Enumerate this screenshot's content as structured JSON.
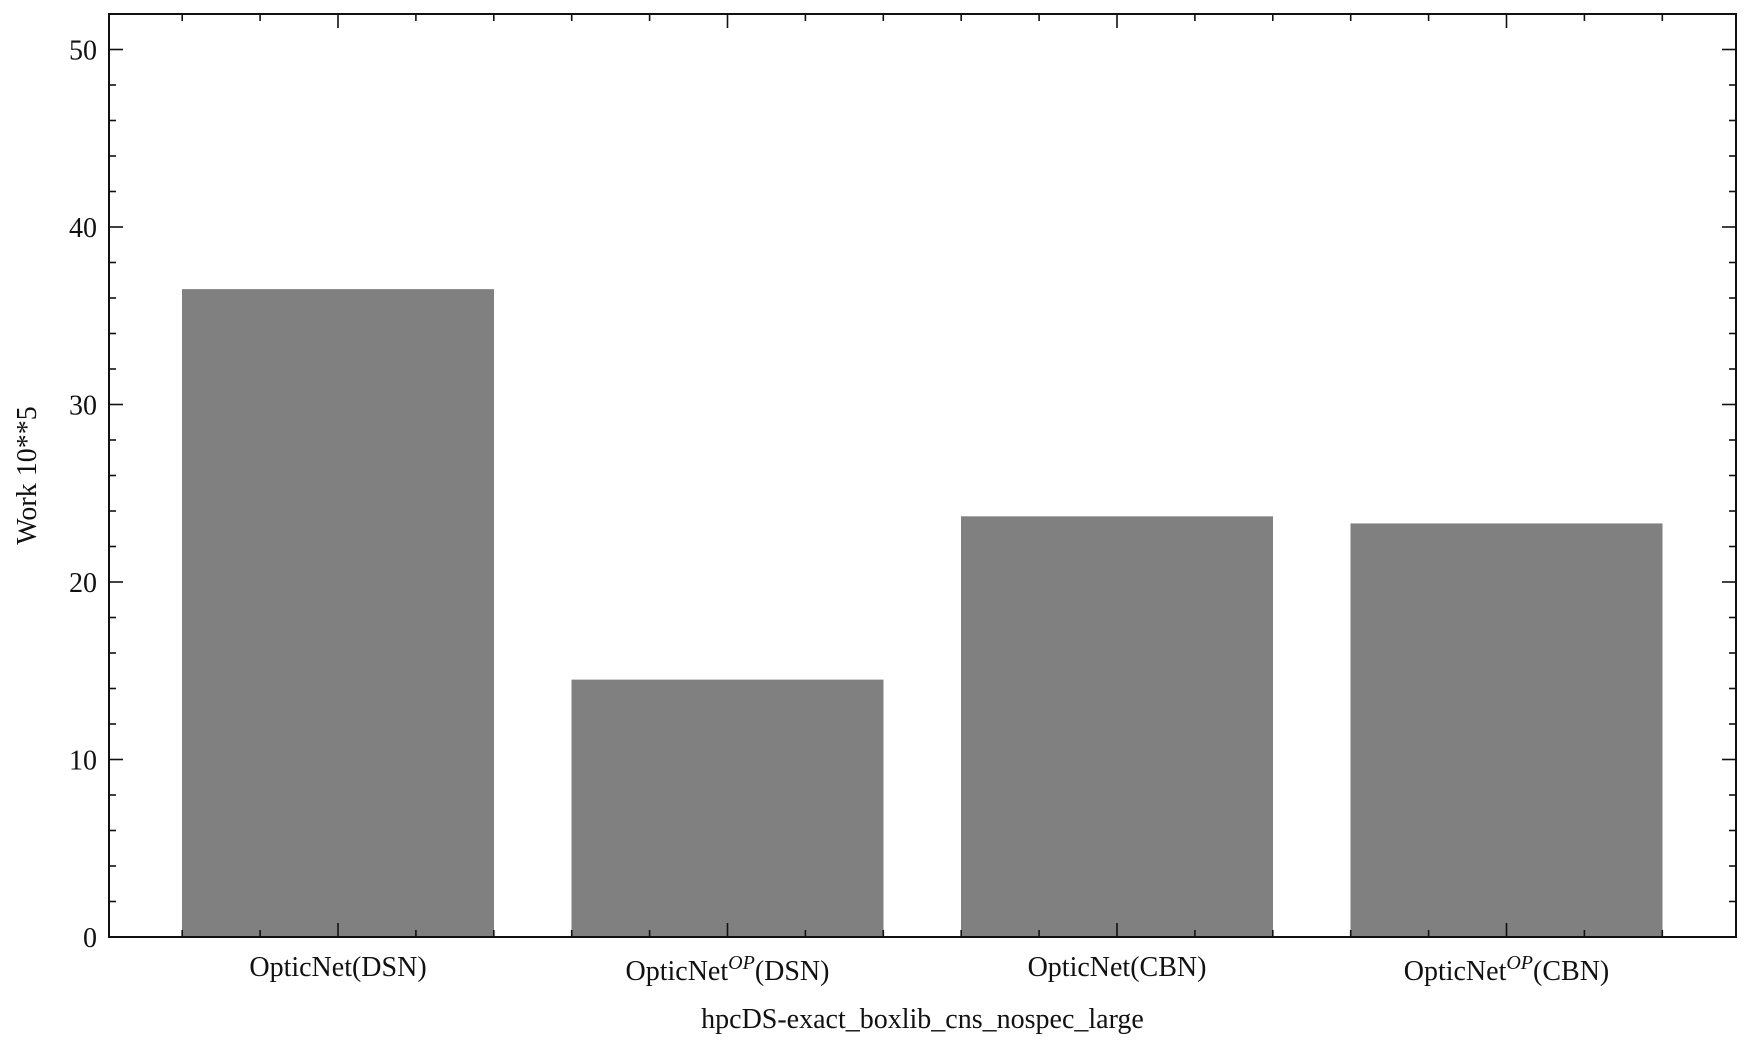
{
  "chart_data": {
    "type": "bar",
    "categories": [
      {
        "base": "OpticNet",
        "sup": "",
        "suffix": "(DSN)"
      },
      {
        "base": "OpticNet",
        "sup": "OP",
        "suffix": "(DSN)"
      },
      {
        "base": "OpticNet",
        "sup": "",
        "suffix": "(CBN)"
      },
      {
        "base": "OpticNet",
        "sup": "OP",
        "suffix": "(CBN)"
      }
    ],
    "values": [
      36.5,
      14.5,
      23.7,
      23.3
    ],
    "xlabel": "hpcDS-exact_boxlib_cns_nospec_large",
    "ylabel": "Work 10**5",
    "ylim": [
      0,
      52
    ],
    "yticks": [
      0,
      10,
      20,
      30,
      40,
      50
    ],
    "grid": false,
    "bar_color": "#808080"
  }
}
